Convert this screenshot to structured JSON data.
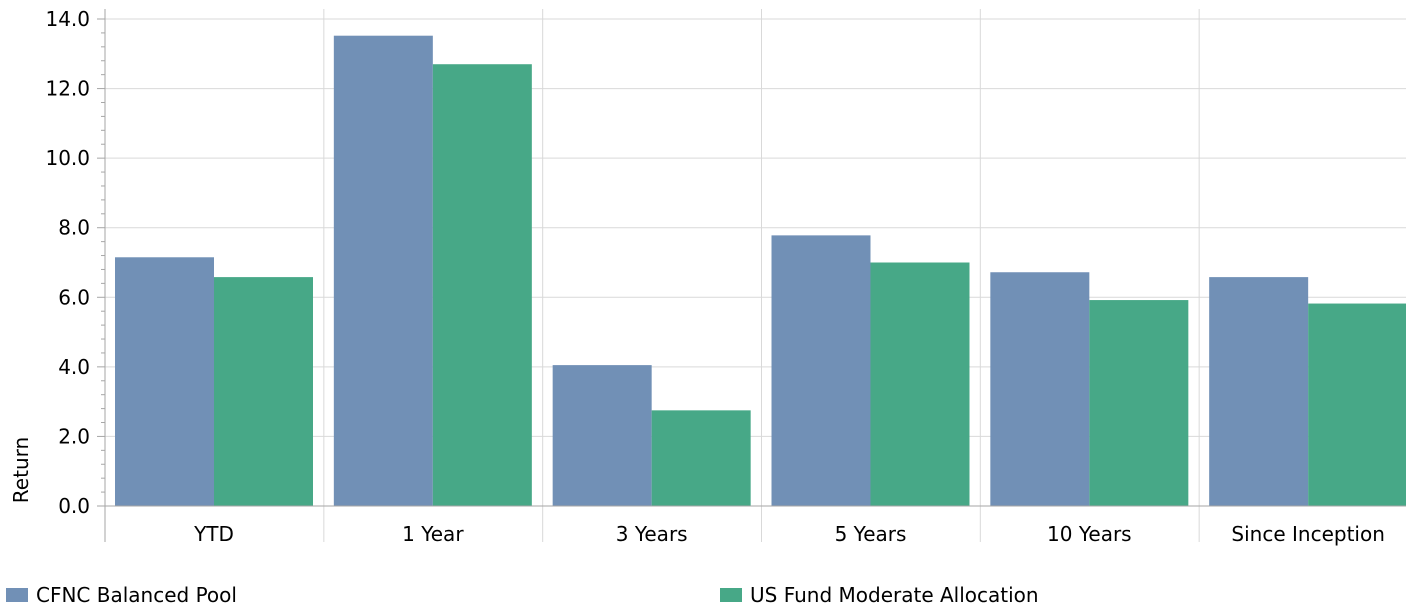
{
  "chart_data": {
    "type": "bar",
    "title": "",
    "xlabel": "",
    "ylabel": "Return",
    "ylim": [
      0,
      14
    ],
    "yticks": [
      "0.0",
      "2.0",
      "4.0",
      "6.0",
      "8.0",
      "10.0",
      "12.0",
      "14.0"
    ],
    "ytick_values": [
      0,
      2,
      4,
      6,
      8,
      10,
      12,
      14
    ],
    "grid": true,
    "legend_position": "bottom",
    "categories": [
      "YTD",
      "1 Year",
      "3 Years",
      "5 Years",
      "10 Years",
      "Since Inception"
    ],
    "series": [
      {
        "name": "CFNC Balanced Pool",
        "color": "#7190b6",
        "values": [
          7.15,
          13.52,
          4.05,
          7.78,
          6.72,
          6.58
        ]
      },
      {
        "name": "US Fund Moderate Allocation",
        "color": "#47a887",
        "values": [
          6.58,
          12.7,
          2.75,
          7.0,
          5.92,
          5.82
        ]
      }
    ]
  }
}
